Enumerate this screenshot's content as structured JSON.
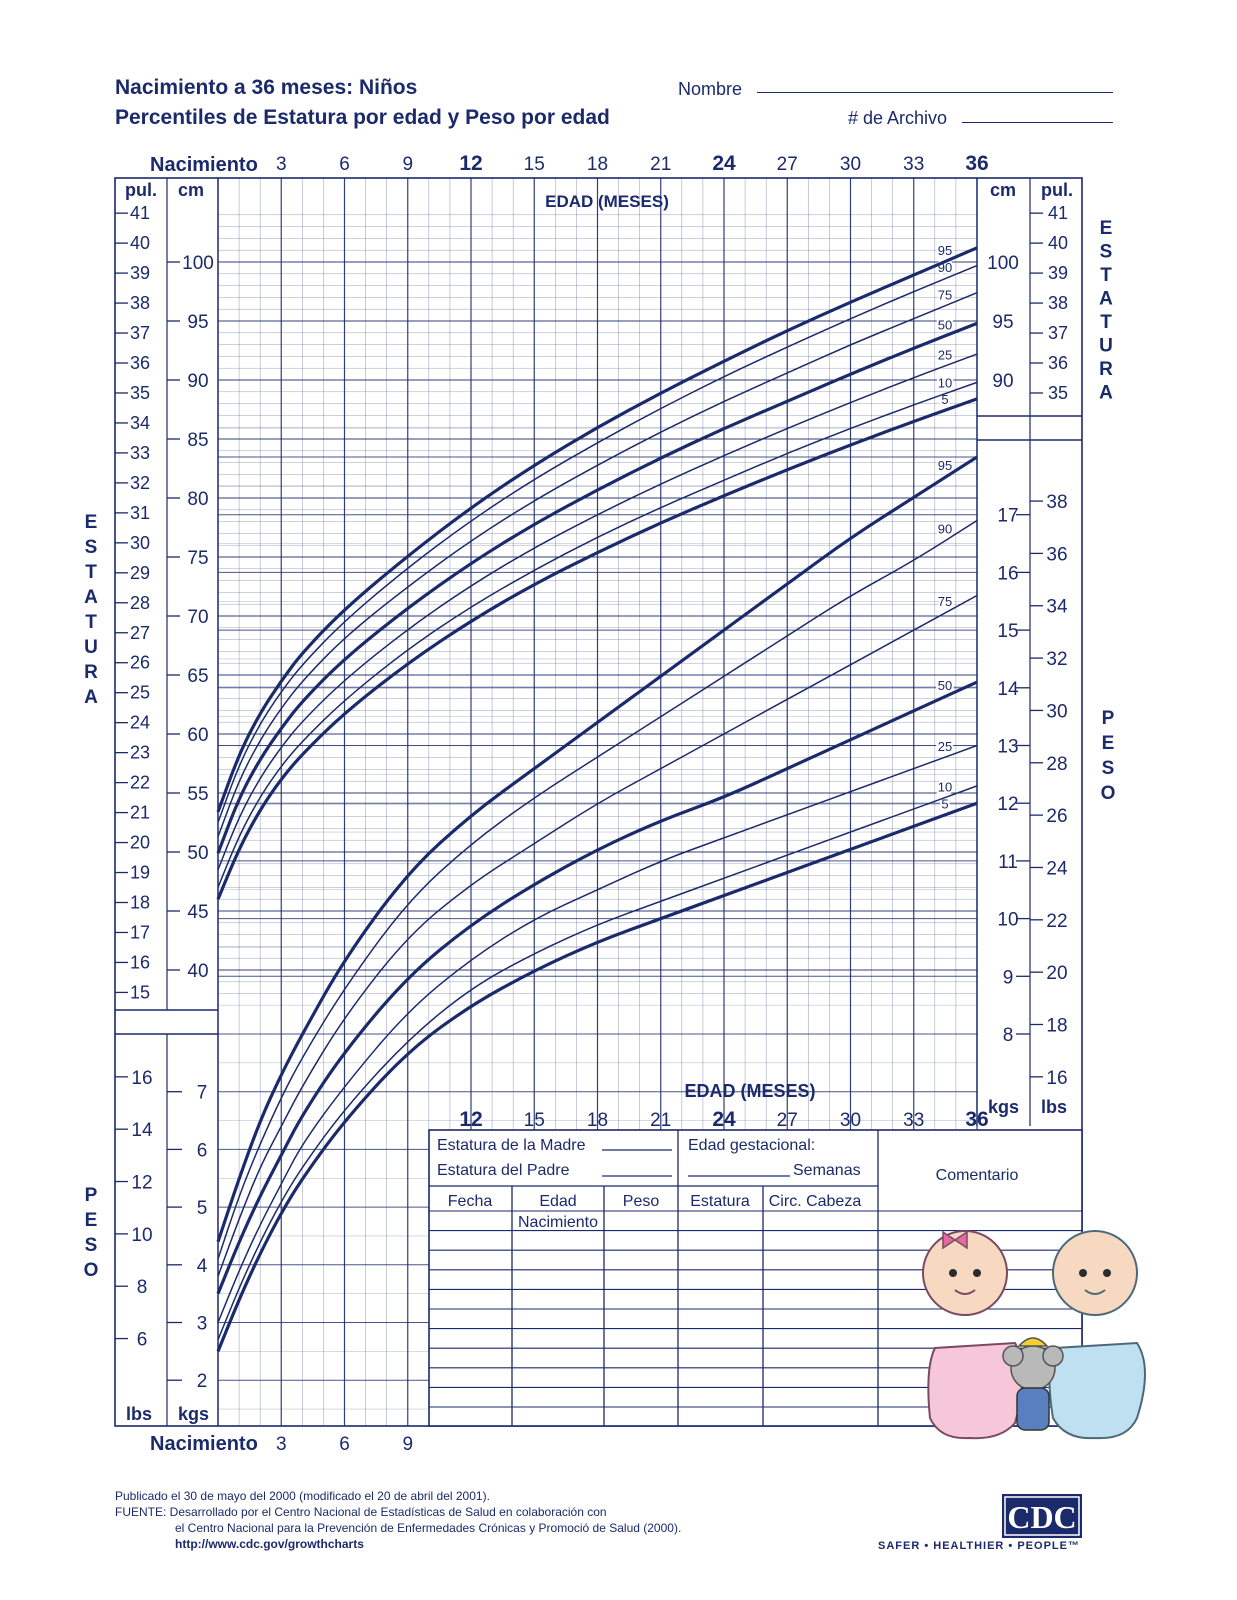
{
  "header": {
    "title_line1": "Nacimiento a 36 meses:  Niños",
    "title_line2": "Percentiles de Estatura por edad y Peso por edad",
    "name_label": "Nombre",
    "file_label": "# de Archivo"
  },
  "chart_data": {
    "type": "line",
    "x_label_top": "EDAD (MESES)",
    "x_label_bottom": "EDAD (MESES)",
    "birth_label": "Nacimiento",
    "x_range": [
      0,
      36
    ],
    "x_ticks_top": [
      "3",
      "6",
      "9",
      "12",
      "15",
      "18",
      "21",
      "24",
      "27",
      "30",
      "33",
      "36"
    ],
    "x_ticks_bottom_left": [
      "3",
      "6",
      "9"
    ],
    "x_ticks_bottom_right": [
      "12",
      "15",
      "18",
      "21",
      "24",
      "27",
      "30",
      "33",
      "36"
    ],
    "side_label_stature": "ESTATURA",
    "side_label_weight": "PESO",
    "stature": {
      "unit_cm": "cm",
      "unit_in": "pul.",
      "cm_range": [
        38,
        104
      ],
      "cm_ticks_left": [
        "40",
        "45",
        "50",
        "55",
        "60",
        "65",
        "70",
        "75",
        "80",
        "85",
        "90",
        "95",
        "100"
      ],
      "cm_ticks_right": [
        "90",
        "95",
        "100"
      ],
      "in_ticks_left": [
        "15",
        "16",
        "17",
        "18",
        "19",
        "20",
        "21",
        "22",
        "23",
        "24",
        "25",
        "26",
        "27",
        "28",
        "29",
        "30",
        "31",
        "32",
        "33",
        "34",
        "35",
        "36",
        "37",
        "38",
        "39",
        "40",
        "41"
      ],
      "in_ticks_right": [
        "35",
        "36",
        "37",
        "38",
        "39",
        "40",
        "41"
      ],
      "series": [
        {
          "name": "5",
          "x": [
            0,
            1,
            2,
            3,
            4,
            6,
            9,
            12,
            15,
            18,
            21,
            24,
            27,
            30,
            33,
            36
          ],
          "y": [
            46.0,
            50.3,
            53.6,
            56.2,
            58.3,
            61.8,
            66.0,
            69.6,
            72.7,
            75.4,
            77.9,
            80.2,
            82.4,
            84.5,
            86.5,
            88.4
          ]
        },
        {
          "name": "10",
          "x": [
            0,
            1,
            2,
            3,
            4,
            6,
            9,
            12,
            15,
            18,
            21,
            24,
            27,
            30,
            33,
            36
          ],
          "y": [
            47.0,
            51.4,
            54.7,
            57.3,
            59.4,
            62.9,
            67.2,
            70.8,
            73.9,
            76.7,
            79.2,
            81.5,
            83.8,
            85.9,
            87.9,
            89.8
          ]
        },
        {
          "name": "25",
          "x": [
            0,
            1,
            2,
            3,
            4,
            6,
            9,
            12,
            15,
            18,
            21,
            24,
            27,
            30,
            33,
            36
          ],
          "y": [
            48.5,
            53.0,
            56.3,
            58.9,
            61.1,
            64.6,
            68.9,
            72.6,
            75.8,
            78.6,
            81.2,
            83.6,
            85.9,
            88.1,
            90.2,
            92.2
          ]
        },
        {
          "name": "50",
          "x": [
            0,
            1,
            2,
            3,
            4,
            6,
            9,
            12,
            15,
            18,
            21,
            24,
            27,
            30,
            33,
            36
          ],
          "y": [
            49.9,
            54.6,
            57.9,
            60.5,
            62.8,
            66.4,
            70.7,
            74.5,
            77.8,
            80.7,
            83.4,
            85.9,
            88.2,
            90.5,
            92.7,
            94.8
          ]
        },
        {
          "name": "75",
          "x": [
            0,
            1,
            2,
            3,
            4,
            6,
            9,
            12,
            15,
            18,
            21,
            24,
            27,
            30,
            33,
            36
          ],
          "y": [
            51.3,
            56.1,
            59.5,
            62.2,
            64.5,
            68.2,
            72.5,
            76.4,
            79.8,
            82.8,
            85.6,
            88.2,
            90.6,
            93.0,
            95.2,
            97.4
          ]
        },
        {
          "name": "90",
          "x": [
            0,
            1,
            2,
            3,
            4,
            6,
            9,
            12,
            15,
            18,
            21,
            24,
            27,
            30,
            33,
            36
          ],
          "y": [
            52.5,
            57.4,
            60.9,
            63.6,
            65.9,
            69.6,
            74.1,
            78.1,
            81.6,
            84.7,
            87.6,
            90.3,
            92.8,
            95.2,
            97.5,
            99.7
          ]
        },
        {
          "name": "95",
          "x": [
            0,
            1,
            2,
            3,
            4,
            6,
            9,
            12,
            15,
            18,
            21,
            24,
            27,
            30,
            33,
            36
          ],
          "y": [
            53.4,
            58.3,
            61.8,
            64.5,
            66.9,
            70.6,
            75.1,
            79.2,
            82.8,
            86.0,
            88.9,
            91.6,
            94.2,
            96.6,
            98.9,
            101.2
          ]
        }
      ]
    },
    "weight": {
      "unit_kg": "kgs",
      "unit_lb": "lbs",
      "kg_range": [
        1.5,
        18.5
      ],
      "kg_ticks_left": [
        "2",
        "3",
        "4",
        "5",
        "6",
        "7"
      ],
      "kg_ticks_right": [
        "8",
        "9",
        "10",
        "11",
        "12",
        "13",
        "14",
        "15",
        "16",
        "17"
      ],
      "lb_ticks_left": [
        "6",
        "8",
        "10",
        "12",
        "14",
        "16"
      ],
      "lb_ticks_right": [
        "16",
        "18",
        "20",
        "22",
        "24",
        "26",
        "28",
        "30",
        "32",
        "34",
        "36",
        "38"
      ],
      "series": [
        {
          "name": "5",
          "x": [
            0,
            1,
            2,
            3,
            4,
            6,
            9,
            12,
            15,
            18,
            21,
            24,
            27,
            30,
            33,
            36
          ],
          "y": [
            2.5,
            3.4,
            4.2,
            4.9,
            5.5,
            6.5,
            7.7,
            8.5,
            9.1,
            9.6,
            10.0,
            10.4,
            10.8,
            11.2,
            11.6,
            12.0
          ]
        },
        {
          "name": "10",
          "x": [
            0,
            1,
            2,
            3,
            4,
            6,
            9,
            12,
            15,
            18,
            21,
            24,
            27,
            30,
            33,
            36
          ],
          "y": [
            2.7,
            3.6,
            4.4,
            5.1,
            5.7,
            6.7,
            7.9,
            8.8,
            9.4,
            9.9,
            10.3,
            10.7,
            11.1,
            11.5,
            11.9,
            12.3
          ]
        },
        {
          "name": "25",
          "x": [
            0,
            1,
            2,
            3,
            4,
            6,
            9,
            12,
            15,
            18,
            21,
            24,
            27,
            30,
            33,
            36
          ],
          "y": [
            3.0,
            3.9,
            4.7,
            5.4,
            6.1,
            7.1,
            8.4,
            9.3,
            10.0,
            10.5,
            11.0,
            11.4,
            11.8,
            12.2,
            12.6,
            13.0
          ]
        },
        {
          "name": "50",
          "x": [
            0,
            1,
            2,
            3,
            4,
            6,
            9,
            12,
            15,
            18,
            21,
            24,
            27,
            30,
            33,
            36
          ],
          "y": [
            3.5,
            4.4,
            5.2,
            5.9,
            6.6,
            7.7,
            9.0,
            9.9,
            10.6,
            11.2,
            11.7,
            12.1,
            12.6,
            13.1,
            13.6,
            14.1
          ]
        },
        {
          "name": "75",
          "x": [
            0,
            1,
            2,
            3,
            4,
            6,
            9,
            12,
            15,
            18,
            21,
            24,
            27,
            30,
            33,
            36
          ],
          "y": [
            3.8,
            4.8,
            5.7,
            6.4,
            7.1,
            8.3,
            9.7,
            10.6,
            11.3,
            12.0,
            12.6,
            13.2,
            13.8,
            14.4,
            15.0,
            15.6
          ]
        },
        {
          "name": "90",
          "x": [
            0,
            1,
            2,
            3,
            4,
            6,
            9,
            12,
            15,
            18,
            21,
            24,
            27,
            30,
            33,
            36
          ],
          "y": [
            4.1,
            5.2,
            6.1,
            6.9,
            7.6,
            8.8,
            10.3,
            11.3,
            12.1,
            12.8,
            13.5,
            14.2,
            14.9,
            15.6,
            16.2,
            16.9
          ]
        },
        {
          "name": "95",
          "x": [
            0,
            1,
            2,
            3,
            4,
            6,
            9,
            12,
            15,
            18,
            21,
            24,
            27,
            30,
            33,
            36
          ],
          "y": [
            4.4,
            5.5,
            6.5,
            7.3,
            8.0,
            9.3,
            10.8,
            11.8,
            12.6,
            13.4,
            14.2,
            15.0,
            15.8,
            16.6,
            17.3,
            18.0
          ]
        }
      ]
    }
  },
  "table": {
    "mother_height": "Estatura de la Madre",
    "father_height": "Estatura del Padre",
    "gestational_age": "Edad gestacional:",
    "weeks": "Semanas",
    "comment": "Comentario",
    "columns": [
      "Fecha",
      "Edad",
      "Peso",
      "Estatura",
      "Circ. Cabeza"
    ],
    "first_row_age": "Nacimiento"
  },
  "footer": {
    "line1": "Publicado el 30 de mayo del 2000 (modificado el 20 de abril del 2001).",
    "line2": "FUENTE: Desarrollado por el Centro Nacional de Estadísticas de Salud en colaboración con",
    "line3": "el Centro Nacional para la Prevención de Enfermedades Crónicas y Promoció de Salud (2000).",
    "url": "http://www.cdc.gov/growthcharts",
    "logo_text": "CDC",
    "tagline": "SAFER • HEALTHIER • PEOPLE™"
  },
  "colors": {
    "ink": "#1b2a6b",
    "grid": "#1b2a6b"
  }
}
